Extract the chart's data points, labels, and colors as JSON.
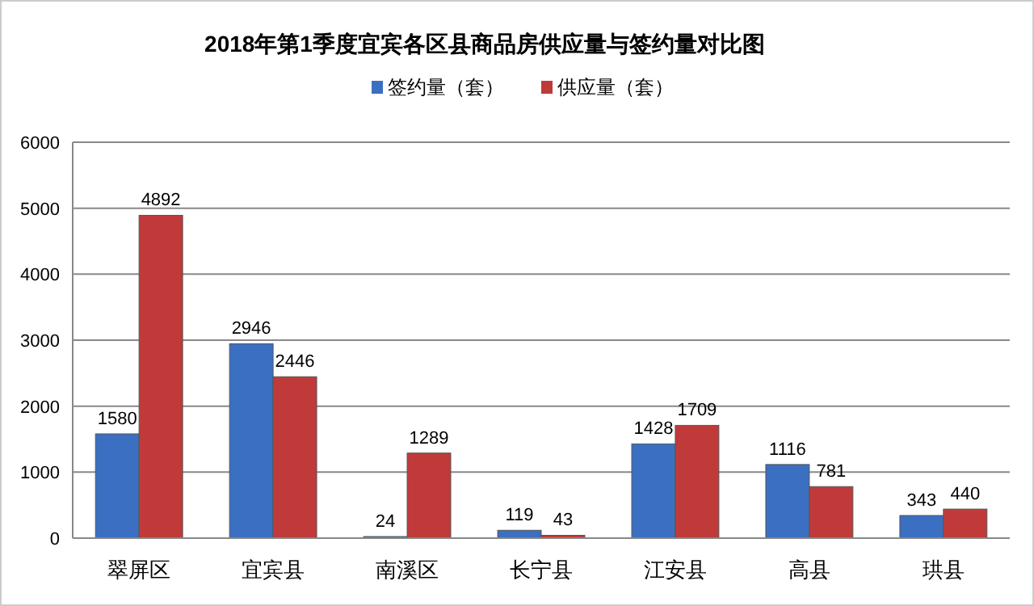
{
  "chart_data": {
    "type": "bar",
    "title": "2018年第1季度宜宾各区县商品房供应量与签约量对比图",
    "categories": [
      "翠屏区",
      "宜宾县",
      "南溪区",
      "长宁县",
      "江安县",
      "高县",
      "珙县"
    ],
    "series": [
      {
        "name": "签约量（套）",
        "color": "#3b6fc2",
        "values": [
          1580,
          2946,
          24,
          119,
          1428,
          1116,
          343
        ]
      },
      {
        "name": "供应量（套）",
        "color": "#c03a3a",
        "values": [
          4892,
          2446,
          1289,
          43,
          1709,
          781,
          440
        ]
      }
    ],
    "ylim": [
      0,
      6000
    ],
    "yticks": [
      0,
      1000,
      2000,
      3000,
      4000,
      5000,
      6000
    ],
    "grid": "y",
    "legend": "top",
    "data_labels": true
  }
}
